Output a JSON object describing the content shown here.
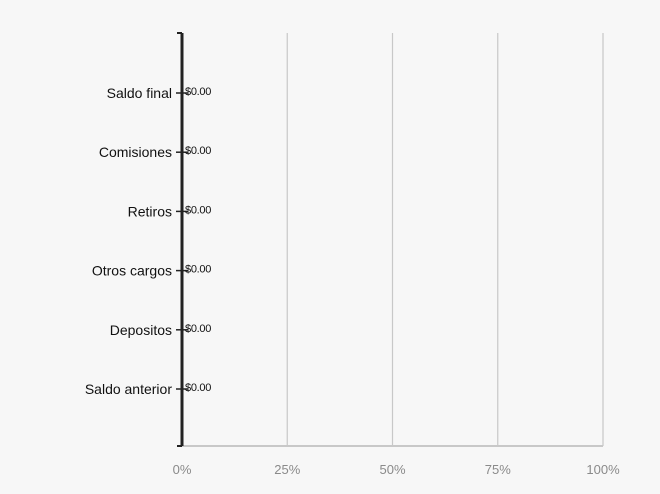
{
  "chart_data": {
    "type": "bar",
    "orientation": "horizontal",
    "categories": [
      "Saldo final",
      "Comisiones",
      "Retiros",
      "Otros cargos",
      "Depositos",
      "Saldo anterior"
    ],
    "values": [
      0,
      0,
      0,
      0,
      0,
      0
    ],
    "data_labels": [
      "$0.00",
      "$0.00",
      "$0.00",
      "$0.00",
      "$0.00",
      "$0.00"
    ],
    "x_ticks": [
      "0%",
      "25%",
      "50%",
      "75%",
      "100%"
    ],
    "xlim": [
      0,
      100
    ],
    "grid": true,
    "title": "",
    "xlabel": "",
    "ylabel": ""
  },
  "colors": {
    "background": "#f7f7f7",
    "axis": "#222222",
    "gridline": "#c8c8c8",
    "category_text": "#111111",
    "tick_text": "#8a8a8a",
    "label_text": "#111111"
  }
}
